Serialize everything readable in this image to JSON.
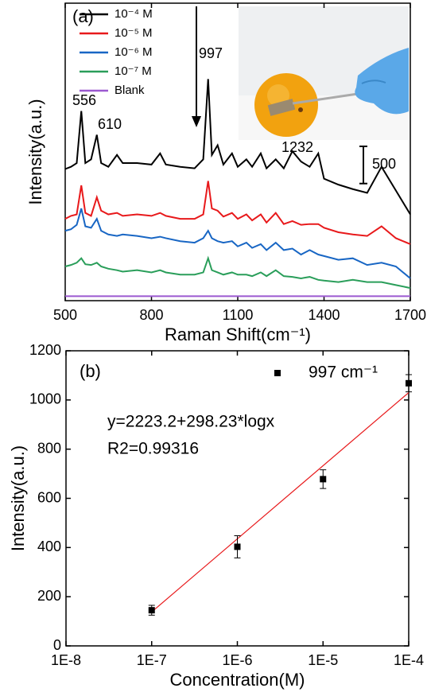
{
  "chart_data": [
    {
      "type": "line",
      "panel_label": "(a)",
      "xlabel": "Raman Shift(cm⁻¹)",
      "ylabel": "Intensity(a.u.)",
      "xlim": [
        500,
        1700
      ],
      "xticks": [
        500,
        800,
        1100,
        1400,
        1700
      ],
      "ylim": [
        0,
        4000
      ],
      "x": [
        500,
        520,
        540,
        556,
        570,
        590,
        610,
        625,
        650,
        680,
        700,
        750,
        800,
        830,
        850,
        900,
        950,
        980,
        997,
        1010,
        1030,
        1050,
        1080,
        1100,
        1130,
        1150,
        1180,
        1200,
        1232,
        1260,
        1290,
        1320,
        1350,
        1380,
        1400,
        1450,
        1500,
        1550,
        1600,
        1650,
        1700
      ],
      "series": [
        {
          "name": "10⁻⁴ M",
          "color": "#000000",
          "values": [
            1770,
            1800,
            1850,
            2550,
            1850,
            1900,
            2230,
            1850,
            1800,
            1960,
            1850,
            1850,
            1830,
            1980,
            1830,
            1800,
            1780,
            1900,
            2980,
            1960,
            2090,
            1830,
            1980,
            1800,
            1900,
            1800,
            1980,
            1780,
            1900,
            1780,
            2010,
            1870,
            1800,
            1980,
            1640,
            1560,
            1500,
            1450,
            1800,
            1480,
            1160
          ]
        },
        {
          "name": "10⁻⁵ M",
          "color": "#e8191b",
          "values": [
            1100,
            1140,
            1160,
            1550,
            1180,
            1140,
            1390,
            1210,
            1160,
            1180,
            1140,
            1160,
            1140,
            1180,
            1140,
            1100,
            1100,
            1160,
            1610,
            1240,
            1210,
            1130,
            1180,
            1100,
            1160,
            1080,
            1160,
            1050,
            1180,
            1030,
            1070,
            1020,
            1030,
            1030,
            980,
            920,
            890,
            870,
            1000,
            840,
            760
          ]
        },
        {
          "name": "10⁻⁶ M",
          "color": "#1866c4",
          "values": [
            940,
            960,
            1020,
            1240,
            1000,
            980,
            1100,
            940,
            890,
            870,
            890,
            870,
            840,
            860,
            840,
            800,
            780,
            840,
            940,
            840,
            800,
            780,
            800,
            730,
            780,
            710,
            760,
            680,
            780,
            680,
            700,
            620,
            680,
            620,
            600,
            550,
            570,
            480,
            510,
            460,
            300
          ]
        },
        {
          "name": "10⁻⁷ M",
          "color": "#2a9e5a",
          "values": [
            460,
            480,
            510,
            570,
            490,
            480,
            510,
            460,
            430,
            410,
            390,
            410,
            380,
            410,
            380,
            350,
            350,
            380,
            570,
            410,
            380,
            350,
            380,
            350,
            350,
            330,
            380,
            330,
            410,
            330,
            320,
            300,
            320,
            280,
            270,
            250,
            280,
            250,
            250,
            210,
            170
          ]
        },
        {
          "name": "Blank",
          "color": "#9b59d0",
          "values": [
            60,
            60,
            60,
            60,
            60,
            60,
            60,
            60,
            60,
            60,
            60,
            60,
            60,
            60,
            60,
            60,
            60,
            60,
            60,
            60,
            60,
            60,
            60,
            60,
            60,
            60,
            60,
            60,
            60,
            60,
            60,
            60,
            60,
            60,
            60,
            60,
            60,
            60,
            60,
            60,
            60
          ]
        }
      ],
      "annotations": [
        "556",
        "610",
        "997",
        "1232"
      ],
      "scale_bar": 500
    },
    {
      "type": "scatter",
      "panel_label": "(b)",
      "xlabel": "Concentration(M)",
      "ylabel": "Intensity(a.u.)",
      "log_x": true,
      "xlim": [
        1e-08,
        0.0001
      ],
      "xticks": [
        {
          "value": 1e-08,
          "label": "1E-8"
        },
        {
          "value": 1e-07,
          "label": "1E-7"
        },
        {
          "value": 1e-06,
          "label": "1E-6"
        },
        {
          "value": 1e-05,
          "label": "1E-5"
        },
        {
          "value": 0.0001,
          "label": "1E-4"
        }
      ],
      "ylim": [
        0,
        1200
      ],
      "yticks": [
        0,
        200,
        400,
        600,
        800,
        1000,
        1200
      ],
      "x": [
        1e-07,
        1e-06,
        1e-05,
        0.0001
      ],
      "series": [
        {
          "name": "997 cm⁻¹",
          "color": "#000000",
          "values": [
            145,
            403,
            678,
            1068
          ],
          "errors": [
            20,
            45,
            38,
            35
          ]
        }
      ],
      "fit": {
        "x": [
          1e-07,
          0.0001
        ],
        "values": [
          138,
          1030
        ],
        "color": "#e8191b"
      },
      "annotations": [
        "y=2223.2+298.23*logx",
        "R2=0.99316"
      ]
    }
  ]
}
